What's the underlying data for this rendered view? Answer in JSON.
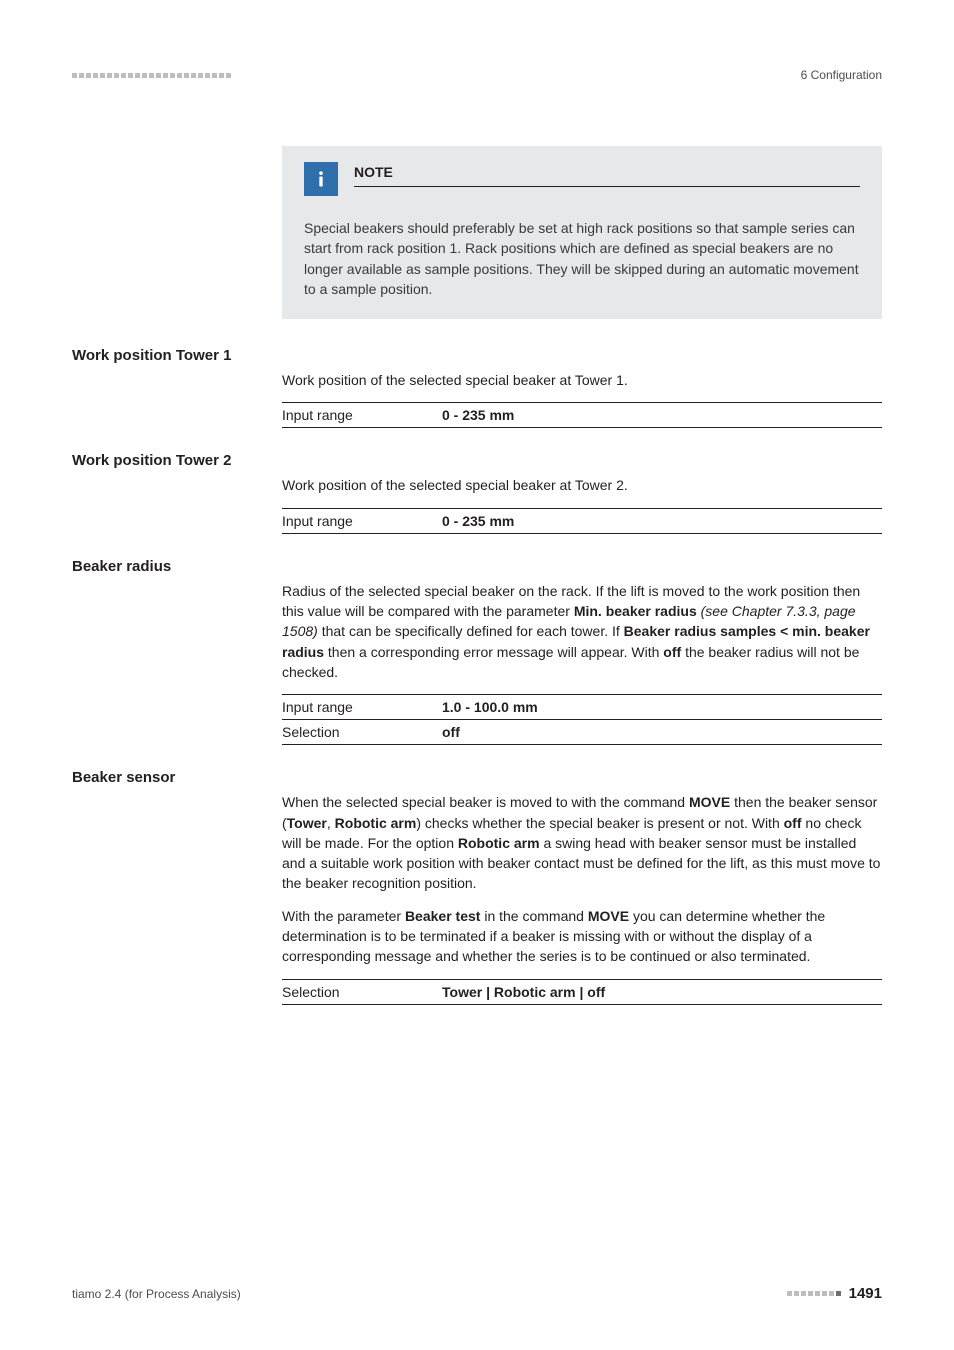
{
  "header": {
    "chapter": "6 Configuration"
  },
  "note": {
    "title": "NOTE",
    "body": "Special beakers should preferably be set at high rack positions so that sample series can start from rack position 1. Rack positions which are defined as special beakers are no longer available as sample positions. They will be skipped during an automatic movement to a sample position."
  },
  "fields": {
    "wp1": {
      "label": "Work position Tower 1",
      "desc": "Work position of the selected special beaker at Tower 1.",
      "rows": [
        {
          "key": "Input range",
          "val": "0 - 235 mm"
        }
      ]
    },
    "wp2": {
      "label": "Work position Tower 2",
      "desc": "Work position of the selected special beaker at Tower 2.",
      "rows": [
        {
          "key": "Input range",
          "val": "0 - 235 mm"
        }
      ]
    },
    "radius": {
      "label": "Beaker radius",
      "desc_html": "Radius of the selected special beaker on the rack. If the lift is moved to the work position then this value will be compared with the parameter <b>Min. beaker radius</b> <i>(see Chapter 7.3.3, page 1508)</i> that can be specifically defined for each tower. If <b>Beaker radius samples &lt; min. beaker radius</b> then a corresponding error message will appear. With <b>off</b> the beaker radius will not be checked.",
      "rows": [
        {
          "key": "Input range",
          "val": "1.0 - 100.0 mm"
        },
        {
          "key": "Selection",
          "val": "off"
        }
      ]
    },
    "sensor": {
      "label": "Beaker sensor",
      "desc1_html": "When the selected special beaker is moved to with the command <b>MOVE</b> then the beaker sensor (<b>Tower</b>, <b>Robotic arm</b>) checks whether the special beaker is present or not. With <b>off</b> no check will be made. For the option <b>Robotic arm</b> a swing head with beaker sensor must be installed and a suitable work position with beaker contact must be defined for the lift, as this must move to the beaker recognition position.",
      "desc2_html": "With the parameter <b>Beaker test</b> in the command <b>MOVE</b> you can determine whether the determination is to be terminated if a beaker is missing with or without the display of a corresponding message and whether the series is to be continued or also terminated.",
      "rows": [
        {
          "key": "Selection",
          "val_html": "<b>Tower</b> | <b>Robotic arm</b> | <b>off</b>"
        }
      ]
    }
  },
  "footer": {
    "left": "tiamo 2.4 (for Process Analysis)",
    "page": "1491"
  }
}
